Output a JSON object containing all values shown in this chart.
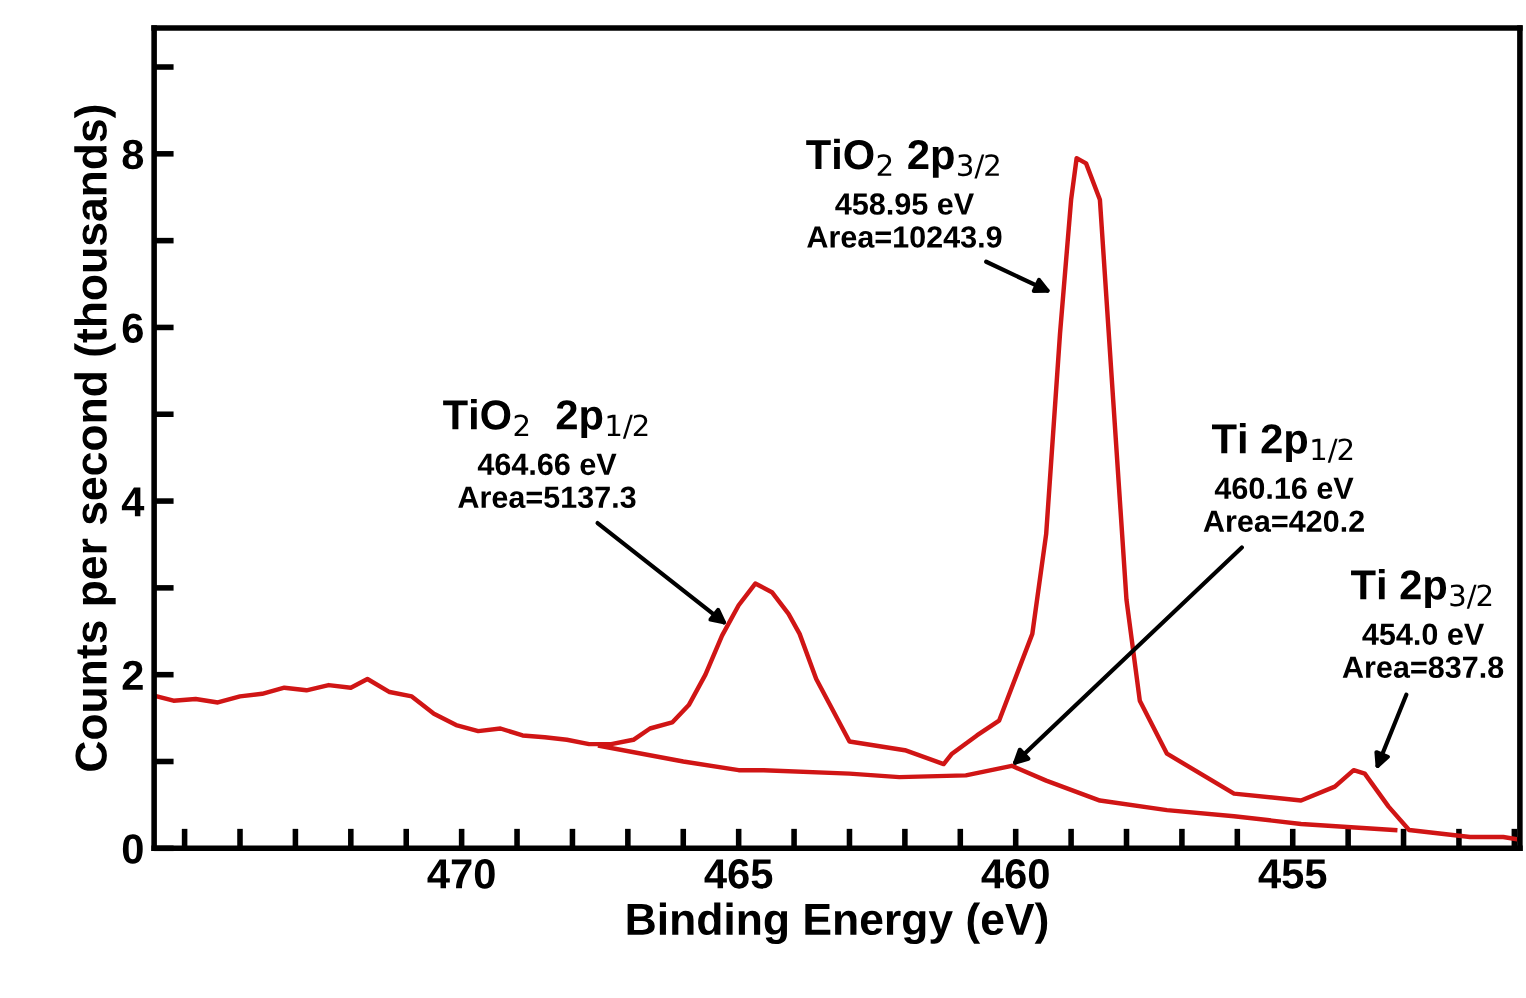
{
  "chart_data": {
    "type": "line",
    "xlabel": "Binding Energy (eV)",
    "ylabel": "Counts per second (thousands)",
    "xlim": [
      475.55,
      450.9
    ],
    "ylim": [
      0,
      9.45
    ],
    "xticks": [
      {
        "value": 475,
        "label": null
      },
      {
        "value": 474,
        "label": null
      },
      {
        "value": 473,
        "label": null
      },
      {
        "value": 472,
        "label": null
      },
      {
        "value": 471,
        "label": null
      },
      470,
      {
        "value": 469,
        "label": null
      },
      {
        "value": 468,
        "label": null
      },
      {
        "value": 467,
        "label": null
      },
      {
        "value": 466,
        "label": null
      },
      465,
      {
        "value": 464,
        "label": null
      },
      {
        "value": 463,
        "label": null
      },
      {
        "value": 462,
        "label": null
      },
      {
        "value": 461,
        "label": null
      },
      460,
      {
        "value": 459,
        "label": null
      },
      {
        "value": 458,
        "label": null
      },
      {
        "value": 457,
        "label": null
      },
      {
        "value": 456,
        "label": null
      },
      455,
      {
        "value": 454,
        "label": null
      },
      {
        "value": 453,
        "label": null
      },
      {
        "value": 452,
        "label": null
      },
      {
        "value": 451,
        "label": null
      }
    ],
    "yticks": [
      0,
      {
        "value": 1,
        "label": null
      },
      2,
      {
        "value": 3,
        "label": null
      },
      4,
      {
        "value": 5,
        "label": null
      },
      6,
      {
        "value": 7,
        "label": null
      },
      8,
      {
        "value": 9,
        "label": null
      }
    ],
    "grid": false,
    "legend": false,
    "marker": "none",
    "line_style": "solid",
    "series": [
      {
        "color": "#d01515",
        "x": [
          475.5,
          475.2,
          474.8,
          474.4,
          474.0,
          473.6,
          473.2,
          472.8,
          472.4,
          472.0,
          471.7,
          471.3,
          470.9,
          470.5,
          470.1,
          469.7,
          469.3,
          468.9,
          468.5,
          468.1,
          467.7,
          467.3,
          466.9,
          466.6,
          466.2,
          465.9,
          465.6,
          465.3,
          465.0,
          464.7,
          464.4,
          464.1,
          463.9,
          463.6,
          463.0,
          462.0,
          461.3,
          461.15,
          460.7,
          460.3,
          459.7,
          459.45,
          459.2,
          459.0,
          458.9,
          458.73,
          458.48,
          458.24,
          458.0,
          457.76,
          457.27,
          456.06,
          454.85,
          454.24,
          453.9,
          453.7,
          453.27,
          452.9,
          451.8,
          451.2,
          450.9
        ],
        "values": [
          1.75,
          1.7,
          1.72,
          1.68,
          1.75,
          1.78,
          1.85,
          1.82,
          1.88,
          1.85,
          1.95,
          1.8,
          1.75,
          1.55,
          1.42,
          1.35,
          1.38,
          1.3,
          1.28,
          1.25,
          1.2,
          1.2,
          1.25,
          1.38,
          1.45,
          1.65,
          2.0,
          2.45,
          2.8,
          3.05,
          2.95,
          2.7,
          2.47,
          1.95,
          1.23,
          1.13,
          0.97,
          1.09,
          1.3,
          1.47,
          2.47,
          3.62,
          5.93,
          7.47,
          7.95,
          7.89,
          7.47,
          5.16,
          2.86,
          1.7,
          1.09,
          0.63,
          0.55,
          0.71,
          0.9,
          0.86,
          0.48,
          0.21,
          0.13,
          0.13,
          0.1
        ]
      },
      {
        "color": "#d01515",
        "x": [
          467.5,
          466.0,
          465.0,
          464.55,
          463.0,
          462.1,
          460.9,
          460.07,
          459.45,
          458.48,
          457.27,
          456.06,
          454.85,
          453.15
        ],
        "values": [
          1.18,
          1.0,
          0.9,
          0.9,
          0.86,
          0.82,
          0.84,
          0.95,
          0.78,
          0.55,
          0.44,
          0.37,
          0.28,
          0.21
        ]
      }
    ],
    "annotations": [
      {
        "text": "TiO$_{2}$  2p$_{1/2}$\n464.66 eV\nArea=5137.3",
        "x": 465.2,
        "y": 2.57
      },
      {
        "text": "TiO$_{2}$ 2p$_{3/2}$\n458.95 eV\nArea=10243.9",
        "x": 459.35,
        "y": 6.4
      },
      {
        "text": "Ti 2p$_{1/2}$\n460.16 eV\nArea=420.2",
        "x": 460.07,
        "y": 0.95
      },
      {
        "text": "Ti 2p$_{3/2}$\n454.0 eV\nArea=837.8",
        "x": 453.5,
        "y": 0.9
      }
    ]
  }
}
